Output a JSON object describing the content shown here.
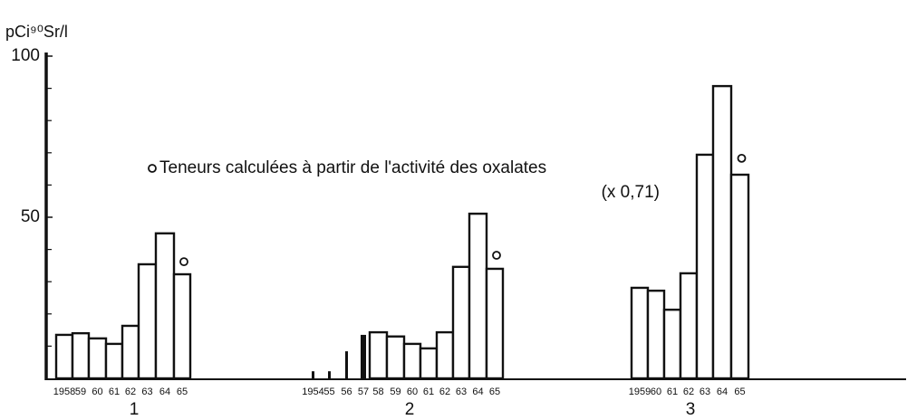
{
  "chart_data": {
    "type": "bar",
    "y_label": "pCi⁹⁰Sr/l",
    "legend": "Teneurs calculées à partir de l'activité des oxalates",
    "legend_note": "(x 0,71)",
    "ylim": [
      0,
      100
    ],
    "yticks": [
      50,
      100
    ],
    "yminorticks": [
      10,
      20,
      30,
      40,
      60,
      70,
      80,
      90
    ],
    "color": "#ffffff",
    "groups": [
      {
        "label": "1",
        "categories": [
          "1958",
          "59",
          "60",
          "61",
          "62",
          "63",
          "64",
          "65"
        ],
        "values": [
          13.5,
          14,
          12.4,
          10.7,
          16.3,
          35.4,
          45,
          32.3
        ],
        "oxalate": [
          null,
          null,
          null,
          null,
          null,
          null,
          null,
          36.2
        ]
      },
      {
        "label": "2",
        "categories": [
          "1954",
          "55",
          "56",
          "57",
          "58",
          "59",
          "60",
          "61",
          "62",
          "63",
          "64",
          "65"
        ],
        "values": [
          2.2,
          2.2,
          8.4,
          13.5,
          14.3,
          13,
          10.7,
          9.3,
          14.3,
          34.6,
          51.1,
          34
        ],
        "oxalate": [
          null,
          null,
          null,
          null,
          null,
          null,
          null,
          null,
          null,
          null,
          null,
          38.2
        ]
      },
      {
        "label": "3",
        "categories": [
          "1959",
          "60",
          "61",
          "62",
          "63",
          "64",
          "65"
        ],
        "values": [
          28.1,
          27.2,
          21.3,
          32.6,
          69.4,
          90.7,
          63.2
        ],
        "oxalate": [
          null,
          null,
          null,
          null,
          null,
          null,
          68.3
        ]
      }
    ]
  }
}
